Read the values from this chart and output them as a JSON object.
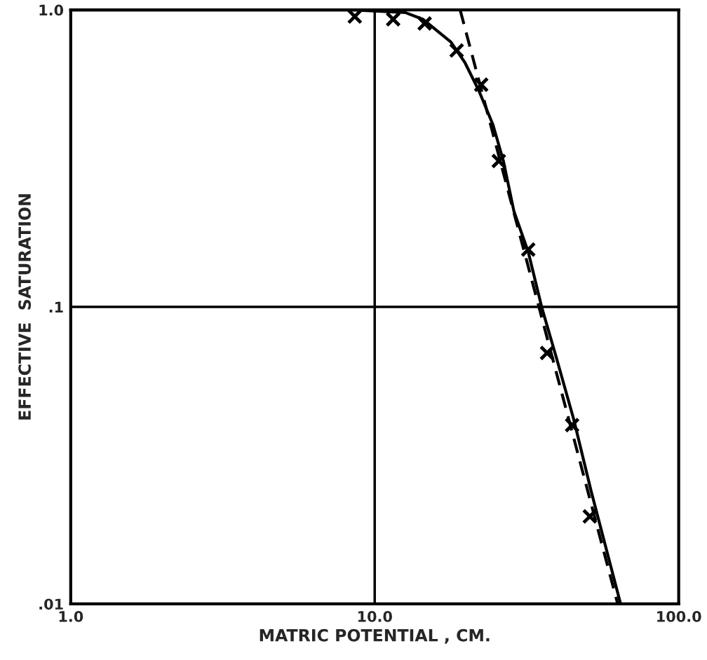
{
  "chart_data": {
    "type": "line",
    "xlabel": "MATRIC POTENTIAL , CM.",
    "ylabel": "EFFECTIVE  SATURATION",
    "log": "xy",
    "xlim": [
      1,
      100
    ],
    "ylim": [
      0.01,
      1
    ],
    "xticks": [
      {
        "value": 1,
        "label": "1.0"
      },
      {
        "value": 10,
        "label": "10.0"
      },
      {
        "value": 100,
        "label": "100.0"
      }
    ],
    "yticks": [
      {
        "value": 0.01,
        "label": ".01"
      },
      {
        "value": 0.1,
        "label": ".1"
      },
      {
        "value": 1,
        "label": "1.0"
      }
    ],
    "grid": true,
    "legend": false,
    "series": [
      {
        "color": "#000000",
        "line_style": "solid",
        "marker": "none",
        "x": [
          1,
          8.5,
          12.6,
          14.4,
          17.8,
          19.8,
          22.0,
          24.5,
          26.5,
          28.7,
          32.0,
          35.5,
          39.5,
          45.1,
          51.5,
          64.4
        ],
        "values": [
          1,
          1,
          0.98,
          0.93,
          0.78,
          0.665,
          0.535,
          0.41,
          0.31,
          0.21,
          0.153,
          0.099,
          0.068,
          0.042,
          0.024,
          0.01
        ]
      },
      {
        "color": "#000000",
        "line_style": "dashed",
        "marker": "none",
        "x": [
          19.1,
          63.0
        ],
        "values": [
          1,
          0.01
        ]
      },
      {
        "type": "scatter",
        "color": "#000000",
        "marker": "cross",
        "x": [
          8.6,
          11.5,
          14.6,
          18.6,
          22.4,
          25.6,
          32.0,
          36.9,
          44.6,
          51.0
        ],
        "values": [
          0.95,
          0.93,
          0.9,
          0.73,
          0.56,
          0.31,
          0.156,
          0.07,
          0.04,
          0.0197
        ]
      }
    ]
  }
}
